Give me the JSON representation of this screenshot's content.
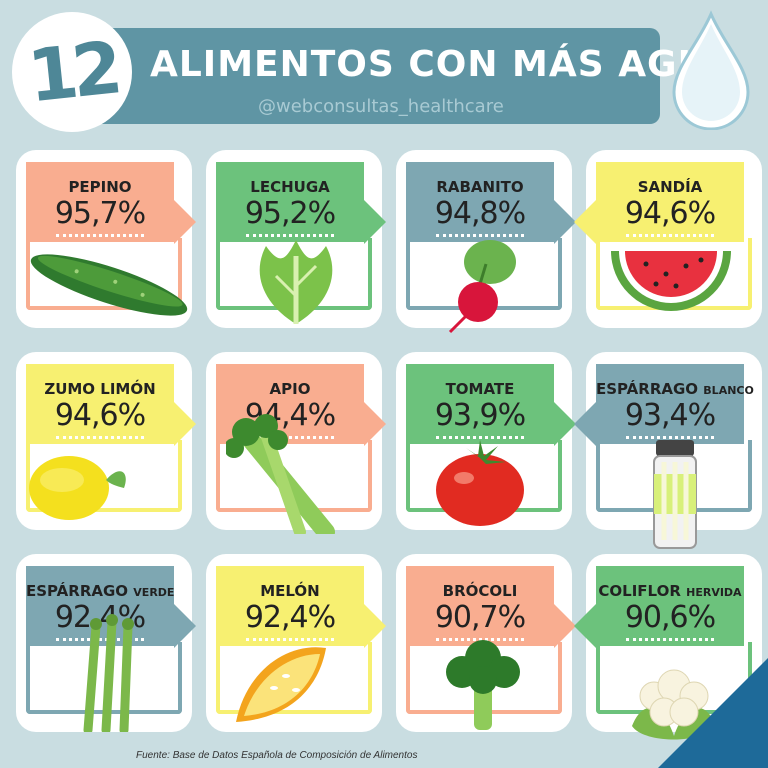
{
  "header": {
    "number": "12",
    "title": "ALIMENTOS CON MÁS AGUA",
    "handle": "@webconsultas_healthcare"
  },
  "cards": [
    {
      "name": "PEPINO",
      "extra": "",
      "pct": "95,7%",
      "color": "#f9ad90",
      "food": "cucumber-icon"
    },
    {
      "name": "LECHUGA",
      "extra": "",
      "pct": "95,2%",
      "color": "#6cc27c",
      "food": "lettuce-icon"
    },
    {
      "name": "RABANITO",
      "extra": "",
      "pct": "94,8%",
      "color": "#7ea7b2",
      "food": "radish-icon"
    },
    {
      "name": "SANDÍA",
      "extra": "",
      "pct": "94,6%",
      "color": "#f7f071",
      "food": "watermelon-icon"
    },
    {
      "name": "ZUMO LIMÓN",
      "extra": "",
      "pct": "94,6%",
      "color": "#f7f071",
      "food": "lemon-icon"
    },
    {
      "name": "APIO",
      "extra": "",
      "pct": "94,4%",
      "color": "#f9ad90",
      "food": "celery-icon"
    },
    {
      "name": "TOMATE",
      "extra": "",
      "pct": "93,9%",
      "color": "#6cc27c",
      "food": "tomato-icon"
    },
    {
      "name": "ESPÁRRAGO",
      "extra": "BLANCO",
      "pct": "93,4%",
      "color": "#7ea7b2",
      "food": "asparagus-jar-icon"
    },
    {
      "name": "ESPÁRRAGO",
      "extra": "VERDE",
      "pct": "92,4%",
      "color": "#7ea7b2",
      "food": "green-asparagus-icon"
    },
    {
      "name": "MELÓN",
      "extra": "",
      "pct": "92,4%",
      "color": "#f7f071",
      "food": "melon-icon"
    },
    {
      "name": "BRÓCOLI",
      "extra": "",
      "pct": "90,7%",
      "color": "#f9ad90",
      "food": "broccoli-icon"
    },
    {
      "name": "COLIFLOR",
      "extra": "HERVIDA",
      "pct": "90,6%",
      "color": "#6cc27c",
      "food": "cauliflower-icon"
    }
  ],
  "footer": "Fuente: Base de Datos Española de Composición de Alimentos"
}
